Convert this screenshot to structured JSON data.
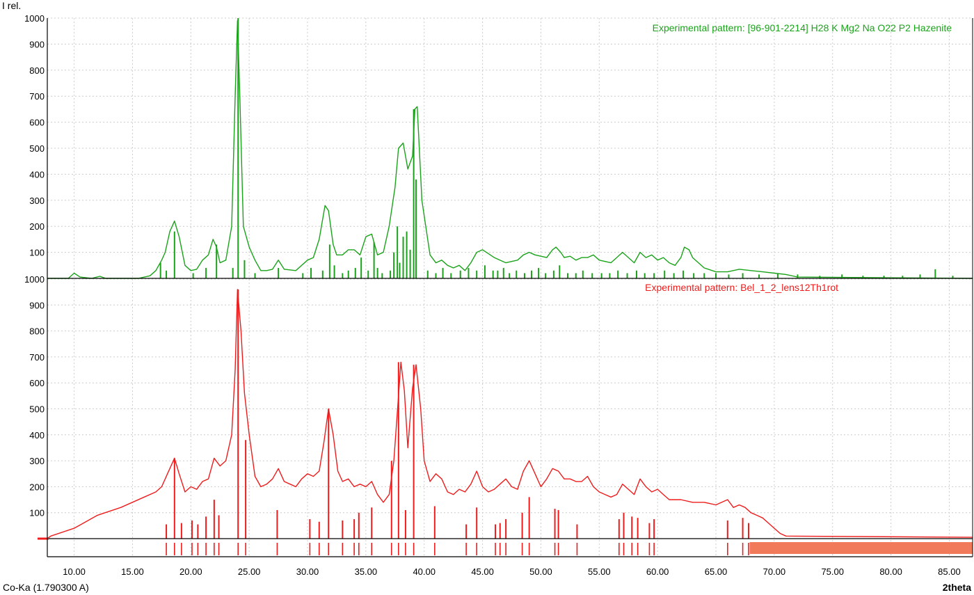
{
  "chart_data": {
    "type": "line",
    "y_axis_title": "I rel.",
    "x_axis_title": "2theta",
    "radiation_label": "Co-Ka (1.790300 A)",
    "xlim": [
      7.7,
      87.0
    ],
    "x_ticks": [
      "10.00",
      "15.00",
      "20.00",
      "25.00",
      "30.00",
      "35.00",
      "40.00",
      "45.00",
      "50.00",
      "55.00",
      "60.00",
      "65.00",
      "70.00",
      "75.00",
      "80.00",
      "85.00"
    ],
    "grid": true,
    "panels": [
      {
        "id": "top",
        "label": "Experimental pattern: [96-901-2214] H28 K Mg2 Na O22 P2 Hazenite",
        "color": "#1aa31a",
        "ylim": [
          0,
          1000
        ],
        "y_ticks": [
          "1000",
          "900",
          "800",
          "700",
          "600",
          "500",
          "400",
          "300",
          "200",
          "100"
        ],
        "profile_x": [
          7.7,
          9.5,
          10.0,
          10.5,
          11.5,
          12.2,
          12.7,
          15.5,
          16.5,
          17.0,
          17.5,
          17.8,
          18.2,
          18.6,
          19.0,
          19.5,
          20.0,
          20.5,
          21.0,
          21.5,
          21.9,
          22.2,
          22.5,
          23.0,
          23.5,
          23.8,
          24.0,
          24.2,
          24.5,
          25.0,
          25.5,
          26.0,
          26.5,
          27.0,
          27.5,
          28.0,
          29.0,
          30.0,
          30.5,
          31.0,
          31.5,
          31.8,
          32.2,
          32.5,
          33.0,
          33.5,
          34.0,
          34.5,
          35.0,
          35.5,
          36.0,
          36.5,
          37.0,
          37.5,
          37.8,
          38.2,
          38.6,
          39.0,
          39.2,
          39.4,
          39.8,
          40.5,
          41.0,
          41.5,
          42.0,
          42.5,
          43.0,
          43.5,
          44.0,
          44.5,
          45.0,
          46.0,
          47.0,
          48.0,
          48.5,
          49.0,
          49.5,
          50.0,
          50.5,
          51.0,
          51.3,
          51.7,
          52.0,
          52.5,
          53.0,
          53.5,
          54.0,
          54.5,
          55.0,
          56.0,
          56.5,
          57.0,
          57.5,
          58.0,
          58.5,
          59.0,
          59.5,
          60.0,
          60.5,
          61.0,
          61.5,
          62.0,
          62.3,
          62.7,
          63.0,
          64.0,
          65.0,
          66.0,
          67.0,
          68.0,
          69.0,
          70.0,
          71.0,
          72.0,
          87.0
        ],
        "profile_y": [
          0,
          0,
          20,
          5,
          0,
          8,
          0,
          0,
          10,
          30,
          70,
          100,
          180,
          220,
          160,
          50,
          30,
          35,
          70,
          90,
          150,
          120,
          60,
          70,
          200,
          700,
          990,
          700,
          200,
          120,
          70,
          30,
          30,
          35,
          70,
          35,
          30,
          70,
          80,
          150,
          280,
          260,
          130,
          90,
          90,
          110,
          110,
          90,
          160,
          170,
          90,
          100,
          200,
          350,
          500,
          520,
          420,
          470,
          650,
          660,
          300,
          90,
          60,
          70,
          50,
          40,
          50,
          30,
          60,
          100,
          110,
          80,
          60,
          70,
          90,
          100,
          90,
          85,
          80,
          110,
          120,
          100,
          80,
          85,
          70,
          80,
          80,
          90,
          70,
          60,
          80,
          100,
          80,
          60,
          100,
          80,
          90,
          70,
          80,
          60,
          50,
          80,
          120,
          110,
          80,
          40,
          25,
          25,
          35,
          30,
          25,
          20,
          15,
          5,
          0
        ],
        "stick_x": [
          17.4,
          17.9,
          18.6,
          20.2,
          21.3,
          22.2,
          23.6,
          24.05,
          24.6,
          25.5,
          27.5,
          29.6,
          30.3,
          31.3,
          31.9,
          32.3,
          33.0,
          33.5,
          34.1,
          34.6,
          35.2,
          35.7,
          36.0,
          36.4,
          37.1,
          37.4,
          37.7,
          37.9,
          38.2,
          38.5,
          38.8,
          39.1,
          39.3,
          40.3,
          41.0,
          41.6,
          42.3,
          43.1,
          43.8,
          44.5,
          45.2,
          45.9,
          46.3,
          46.8,
          47.3,
          47.9,
          48.6,
          49.2,
          49.8,
          50.4,
          51.1,
          51.6,
          52.3,
          53.0,
          53.6,
          54.4,
          55.2,
          55.9,
          56.6,
          57.4,
          58.2,
          58.9,
          59.7,
          60.6,
          61.4,
          62.2,
          63.1,
          64.0,
          65.0,
          66.1,
          67.3,
          68.7,
          70.3,
          72.0,
          73.9,
          75.8,
          77.6,
          79.4,
          81.0,
          82.5,
          83.8,
          85.3
        ],
        "stick_y": [
          60,
          30,
          180,
          20,
          40,
          130,
          40,
          1000,
          70,
          20,
          40,
          20,
          40,
          30,
          130,
          50,
          20,
          30,
          40,
          80,
          30,
          140,
          40,
          20,
          30,
          100,
          200,
          60,
          160,
          180,
          110,
          650,
          380,
          30,
          20,
          40,
          20,
          30,
          40,
          30,
          50,
          30,
          30,
          40,
          20,
          30,
          20,
          30,
          40,
          20,
          30,
          50,
          20,
          20,
          30,
          20,
          20,
          20,
          30,
          20,
          30,
          20,
          20,
          30,
          20,
          30,
          20,
          20,
          20,
          15,
          20,
          15,
          20,
          15,
          10,
          15,
          10,
          10,
          10,
          15,
          35,
          10
        ]
      },
      {
        "id": "bottom",
        "label": "Experimental pattern: Bel_1_2_lens12Th1rot",
        "color": "#ee1c1c",
        "bar_color": "#f07a5a",
        "ylim": [
          -70,
          1000
        ],
        "y_ticks": [
          "1000",
          "900",
          "800",
          "700",
          "600",
          "500",
          "400",
          "300",
          "200",
          "100"
        ],
        "profile_x": [
          7.7,
          8.0,
          10.0,
          12.0,
          14.0,
          16.0,
          17.0,
          17.5,
          18.0,
          18.6,
          19.0,
          19.5,
          20.0,
          20.5,
          21.0,
          21.5,
          22.0,
          22.5,
          23.0,
          23.5,
          23.8,
          24.0,
          24.3,
          24.6,
          25.0,
          25.5,
          26.0,
          26.5,
          27.0,
          27.5,
          28.0,
          28.5,
          29.0,
          29.5,
          30.0,
          30.5,
          31.0,
          31.4,
          31.8,
          32.2,
          32.6,
          33.0,
          33.5,
          34.0,
          34.5,
          35.0,
          35.5,
          36.0,
          36.5,
          37.0,
          37.4,
          37.8,
          38.0,
          38.3,
          38.6,
          39.0,
          39.3,
          39.7,
          40.0,
          40.5,
          41.0,
          41.5,
          42.0,
          42.5,
          43.0,
          43.5,
          44.0,
          44.5,
          45.0,
          45.5,
          46.0,
          46.5,
          47.0,
          47.5,
          48.0,
          48.5,
          49.0,
          49.5,
          50.0,
          50.5,
          51.0,
          51.5,
          52.0,
          52.5,
          53.0,
          53.5,
          54.0,
          54.5,
          55.0,
          55.5,
          56.0,
          56.5,
          57.0,
          57.5,
          58.0,
          58.5,
          59.0,
          59.5,
          60.0,
          60.5,
          61.0,
          62.0,
          63.0,
          64.0,
          65.0,
          66.0,
          66.5,
          67.0,
          67.5,
          68.0,
          68.5,
          69.0,
          69.5,
          70.0,
          70.5,
          71.0,
          87.0
        ],
        "profile_y": [
          0,
          10,
          40,
          90,
          120,
          160,
          180,
          200,
          250,
          310,
          250,
          180,
          200,
          190,
          220,
          230,
          310,
          280,
          300,
          400,
          650,
          960,
          800,
          560,
          400,
          240,
          200,
          210,
          230,
          270,
          220,
          210,
          200,
          230,
          250,
          240,
          260,
          370,
          500,
          400,
          260,
          220,
          230,
          200,
          210,
          200,
          220,
          170,
          140,
          170,
          300,
          550,
          680,
          570,
          350,
          580,
          670,
          500,
          300,
          220,
          250,
          230,
          180,
          170,
          190,
          180,
          210,
          260,
          200,
          180,
          190,
          210,
          230,
          200,
          190,
          260,
          300,
          250,
          200,
          230,
          270,
          260,
          230,
          230,
          220,
          220,
          240,
          200,
          180,
          170,
          160,
          170,
          210,
          190,
          170,
          230,
          200,
          180,
          190,
          170,
          150,
          150,
          140,
          140,
          130,
          150,
          120,
          130,
          120,
          100,
          90,
          80,
          60,
          40,
          20,
          10,
          5,
          0
        ],
        "stick_x": [
          17.9,
          18.6,
          19.2,
          20.1,
          20.6,
          21.3,
          22.0,
          22.4,
          24.05,
          24.7,
          27.4,
          30.2,
          31.0,
          31.8,
          33.0,
          34.0,
          34.4,
          35.5,
          37.2,
          37.8,
          38.4,
          39.1,
          40.9,
          43.6,
          44.5,
          46.1,
          46.5,
          47.0,
          48.4,
          49.0,
          51.2,
          51.5,
          53.1,
          56.7,
          57.1,
          57.8,
          58.3,
          59.3,
          59.7,
          66.0,
          67.3,
          67.8
        ],
        "stick_y": [
          55,
          310,
          60,
          70,
          55,
          85,
          150,
          90,
          960,
          380,
          110,
          75,
          65,
          500,
          70,
          75,
          100,
          120,
          300,
          680,
          110,
          670,
          125,
          55,
          120,
          55,
          60,
          75,
          100,
          160,
          115,
          110,
          55,
          75,
          100,
          85,
          80,
          60,
          75,
          70,
          80,
          60
        ]
      }
    ]
  }
}
